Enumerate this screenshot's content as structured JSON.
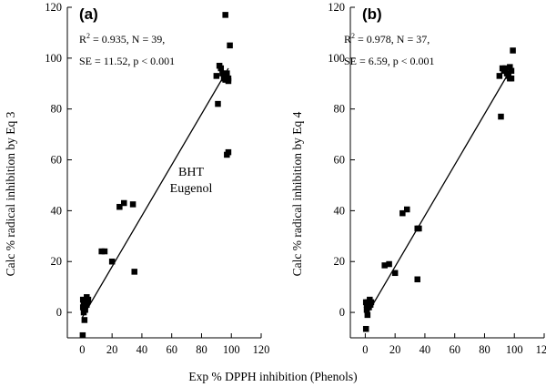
{
  "figure": {
    "shared_xlabel": "Exp % DPPH inhibition (Phenols)"
  },
  "chart_data": [
    {
      "type": "scatter",
      "panel_label": "(a)",
      "ylabel": "Calc % radical inhibition by Eq 3",
      "stats_line1": "R",
      "stats_sup": "2",
      "stats_line1_rest": " = 0.935, N = 39,",
      "stats_line2": "SE = 11.52, p < 0.001",
      "xlim": [
        -10,
        120
      ],
      "ylim": [
        -10,
        120
      ],
      "xticks": [
        0,
        20,
        40,
        60,
        80,
        100,
        120
      ],
      "yticks": [
        0,
        20,
        40,
        60,
        80,
        100,
        120
      ],
      "annotations": [
        {
          "text": "BHT",
          "x": 92,
          "y": 55
        },
        {
          "text": "Eugenol",
          "x": 92,
          "y": 46
        }
      ],
      "fit_line": {
        "x": [
          0,
          98
        ],
        "y": [
          -2,
          96
        ]
      },
      "points": [
        {
          "x": 0.5,
          "y": 5
        },
        {
          "x": 1,
          "y": 4
        },
        {
          "x": 0.5,
          "y": 2
        },
        {
          "x": 1,
          "y": 0
        },
        {
          "x": 1.5,
          "y": -3
        },
        {
          "x": 0.3,
          "y": -9
        },
        {
          "x": 2,
          "y": 3
        },
        {
          "x": 3,
          "y": 6
        },
        {
          "x": 3.5,
          "y": 4
        },
        {
          "x": 4,
          "y": 5
        },
        {
          "x": 3,
          "y": 3
        },
        {
          "x": 2,
          "y": 1
        },
        {
          "x": 13,
          "y": 24
        },
        {
          "x": 15,
          "y": 24
        },
        {
          "x": 20,
          "y": 20
        },
        {
          "x": 25,
          "y": 41.5
        },
        {
          "x": 28,
          "y": 43
        },
        {
          "x": 34,
          "y": 42.5
        },
        {
          "x": 35,
          "y": 16
        },
        {
          "x": 90,
          "y": 93
        },
        {
          "x": 91,
          "y": 82
        },
        {
          "x": 92,
          "y": 97
        },
        {
          "x": 93,
          "y": 96
        },
        {
          "x": 94,
          "y": 94
        },
        {
          "x": 95,
          "y": 92
        },
        {
          "x": 96,
          "y": 91.5
        },
        {
          "x": 96,
          "y": 117
        },
        {
          "x": 97,
          "y": 94
        },
        {
          "x": 97,
          "y": 62
        },
        {
          "x": 98,
          "y": 63
        },
        {
          "x": 98,
          "y": 92
        },
        {
          "x": 99,
          "y": 105
        },
        {
          "x": 98,
          "y": 91
        }
      ]
    },
    {
      "type": "scatter",
      "panel_label": "(b)",
      "ylabel": "Calc % radical inhibition by Eq 4",
      "stats_line1": "R",
      "stats_sup": "2",
      "stats_line1_rest": " = 0.978, N = 37,",
      "stats_line2": "SE = 6.59, p < 0.001",
      "xlim": [
        -10,
        120
      ],
      "ylim": [
        -10,
        120
      ],
      "xticks": [
        0,
        20,
        40,
        60,
        80,
        100,
        120
      ],
      "yticks": [
        0,
        20,
        40,
        60,
        80,
        100,
        120
      ],
      "annotations": [],
      "fit_line": {
        "x": [
          0,
          98
        ],
        "y": [
          -2,
          96
        ]
      },
      "points": [
        {
          "x": 0.5,
          "y": 4
        },
        {
          "x": 1,
          "y": 3
        },
        {
          "x": 1,
          "y": 1
        },
        {
          "x": 1.5,
          "y": -1
        },
        {
          "x": 0.5,
          "y": -6.5
        },
        {
          "x": 2,
          "y": 4
        },
        {
          "x": 3,
          "y": 5
        },
        {
          "x": 3.5,
          "y": 3
        },
        {
          "x": 2.5,
          "y": 2
        },
        {
          "x": 4,
          "y": 4
        },
        {
          "x": 13,
          "y": 18.5
        },
        {
          "x": 16,
          "y": 19
        },
        {
          "x": 20,
          "y": 15.5
        },
        {
          "x": 25,
          "y": 39
        },
        {
          "x": 28,
          "y": 40.5
        },
        {
          "x": 35,
          "y": 33
        },
        {
          "x": 36,
          "y": 33
        },
        {
          "x": 35,
          "y": 13
        },
        {
          "x": 90,
          "y": 93
        },
        {
          "x": 91,
          "y": 77
        },
        {
          "x": 92,
          "y": 96
        },
        {
          "x": 93,
          "y": 95
        },
        {
          "x": 94,
          "y": 96
        },
        {
          "x": 95,
          "y": 94
        },
        {
          "x": 96,
          "y": 93
        },
        {
          "x": 97,
          "y": 96.5
        },
        {
          "x": 97,
          "y": 92
        },
        {
          "x": 98,
          "y": 92
        },
        {
          "x": 99,
          "y": 103
        },
        {
          "x": 98,
          "y": 95
        }
      ]
    }
  ]
}
